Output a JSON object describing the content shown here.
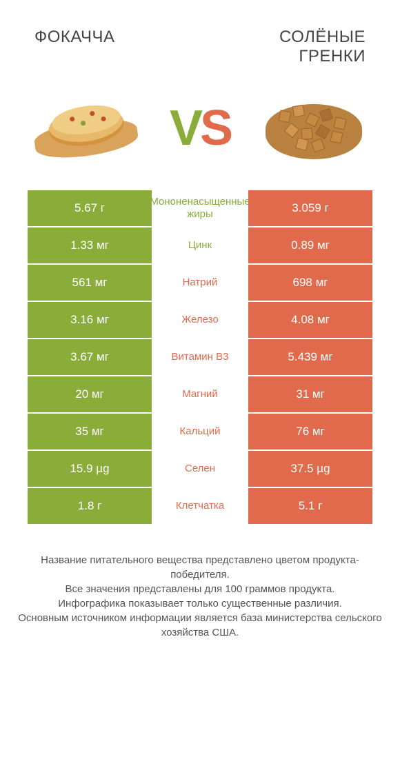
{
  "left_title": "ФОКАЧЧА",
  "right_title": "СОЛЁНЫЕ ГРЕНКИ",
  "vs": {
    "v": "V",
    "s": "S"
  },
  "colors": {
    "green": "#8aad3a",
    "orange": "#e06a4b",
    "bg": "#ffffff",
    "text": "#444444"
  },
  "fontsize": {
    "title": 24,
    "vs": 72,
    "value": 17,
    "nutrient": 15,
    "footer": 15
  },
  "rows": [
    {
      "left": "5.67 г",
      "label": "Мононенасыщенные жиры",
      "right": "3.059 г",
      "winner": "left"
    },
    {
      "left": "1.33 мг",
      "label": "Цинк",
      "right": "0.89 мг",
      "winner": "left"
    },
    {
      "left": "561 мг",
      "label": "Натрий",
      "right": "698 мг",
      "winner": "right"
    },
    {
      "left": "3.16 мг",
      "label": "Железо",
      "right": "4.08 мг",
      "winner": "right"
    },
    {
      "left": "3.67 мг",
      "label": "Витамин B3",
      "right": "5.439 мг",
      "winner": "right"
    },
    {
      "left": "20 мг",
      "label": "Магний",
      "right": "31 мг",
      "winner": "right"
    },
    {
      "left": "35 мг",
      "label": "Кальций",
      "right": "76 мг",
      "winner": "right"
    },
    {
      "left": "15.9 µg",
      "label": "Селен",
      "right": "37.5 µg",
      "winner": "right"
    },
    {
      "left": "1.8 г",
      "label": "Клетчатка",
      "right": "5.1 г",
      "winner": "right"
    }
  ],
  "footer_lines": [
    "Название питательного вещества представлено цветом продукта-победителя.",
    "Все значения представлены для 100 граммов продукта.",
    "Инфографика показывает только существенные различия.",
    "Основным источником информации является база министерства сельского хозяйства США."
  ]
}
